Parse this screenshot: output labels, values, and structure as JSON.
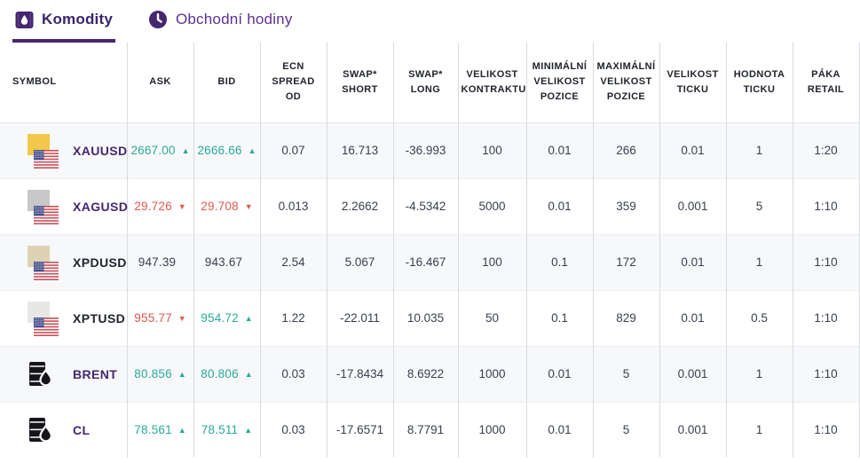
{
  "tabs": [
    {
      "label": "Komodity",
      "icon": "oil-barrel-tab-icon",
      "active": true
    },
    {
      "label": "Obchodní hodiny",
      "icon": "clock-icon",
      "active": false
    }
  ],
  "table": {
    "columns": [
      {
        "key": "symbol",
        "label": "SYMBOL"
      },
      {
        "key": "ask",
        "label": "ASK"
      },
      {
        "key": "bid",
        "label": "BID"
      },
      {
        "key": "ecn_spread_od",
        "label": "ECN SPREAD OD"
      },
      {
        "key": "swap_short",
        "label": "SWAP* SHORT"
      },
      {
        "key": "swap_long",
        "label": "SWAP* LONG"
      },
      {
        "key": "velikost_kontraktu",
        "label": "VELIKOST KONTRAKTU"
      },
      {
        "key": "min_velikost_pozice",
        "label": "MINIMÁLNÍ VELIKOST POZICE"
      },
      {
        "key": "max_velikost_pozice",
        "label": "MAXIMÁLNÍ VELIKOST POZICE"
      },
      {
        "key": "velikost_ticku",
        "label": "VELIKOST TICKU"
      },
      {
        "key": "hodnota_ticku",
        "label": "HODNOTA TICKU"
      },
      {
        "key": "paka_retail",
        "label": "PÁKA RETAIL"
      }
    ],
    "rows": [
      {
        "symbol": "XAUUSD",
        "icon": "gold-us-flag-icon",
        "symbol_color": "#44276f",
        "ask": "2667.00",
        "ask_dir": "up",
        "bid": "2666.66",
        "bid_dir": "up",
        "ecn_spread_od": "0.07",
        "swap_short": "16.713",
        "swap_long": "-36.993",
        "velikost_kontraktu": "100",
        "min_velikost_pozice": "0.01",
        "max_velikost_pozice": "266",
        "velikost_ticku": "0.01",
        "hodnota_ticku": "1",
        "paka_retail": "1:20"
      },
      {
        "symbol": "XAGUSD",
        "icon": "silver-us-flag-icon",
        "symbol_color": "#44276f",
        "ask": "29.726",
        "ask_dir": "down",
        "bid": "29.708",
        "bid_dir": "down",
        "ecn_spread_od": "0.013",
        "swap_short": "2.2662",
        "swap_long": "-4.5342",
        "velikost_kontraktu": "5000",
        "min_velikost_pozice": "0.01",
        "max_velikost_pozice": "359",
        "velikost_ticku": "0.001",
        "hodnota_ticku": "5",
        "paka_retail": "1:10"
      },
      {
        "symbol": "XPDUSD",
        "icon": "palladium-us-flag-icon",
        "symbol_color": "#20242e",
        "ask": "947.39",
        "ask_dir": "flat",
        "bid": "943.67",
        "bid_dir": "flat",
        "ecn_spread_od": "2.54",
        "swap_short": "5.067",
        "swap_long": "-16.467",
        "velikost_kontraktu": "100",
        "min_velikost_pozice": "0.1",
        "max_velikost_pozice": "172",
        "velikost_ticku": "0.01",
        "hodnota_ticku": "1",
        "paka_retail": "1:10"
      },
      {
        "symbol": "XPTUSD",
        "icon": "platinum-us-flag-icon",
        "symbol_color": "#20242e",
        "ask": "955.77",
        "ask_dir": "down",
        "bid": "954.72",
        "bid_dir": "up",
        "ecn_spread_od": "1.22",
        "swap_short": "-22.011",
        "swap_long": "10.035",
        "velikost_kontraktu": "50",
        "min_velikost_pozice": "0.1",
        "max_velikost_pozice": "829",
        "velikost_ticku": "0.01",
        "hodnota_ticku": "0.5",
        "paka_retail": "1:10"
      },
      {
        "symbol": "BRENT",
        "icon": "oil-barrel-icon",
        "symbol_color": "#44276f",
        "ask": "80.856",
        "ask_dir": "up",
        "bid": "80.806",
        "bid_dir": "up",
        "ecn_spread_od": "0.03",
        "swap_short": "-17.8434",
        "swap_long": "8.6922",
        "velikost_kontraktu": "1000",
        "min_velikost_pozice": "0.01",
        "max_velikost_pozice": "5",
        "velikost_ticku": "0.001",
        "hodnota_ticku": "1",
        "paka_retail": "1:10"
      },
      {
        "symbol": "CL",
        "icon": "oil-barrel-icon",
        "symbol_color": "#44276f",
        "ask": "78.561",
        "ask_dir": "up",
        "bid": "78.511",
        "bid_dir": "up",
        "ecn_spread_od": "0.03",
        "swap_short": "-17.6571",
        "swap_long": "8.7791",
        "velikost_kontraktu": "1000",
        "min_velikost_pozice": "0.01",
        "max_velikost_pozice": "5",
        "velikost_ticku": "0.001",
        "hodnota_ticku": "1",
        "paka_retail": "1:10"
      }
    ]
  },
  "icons": {
    "up_arrow": "▲",
    "down_arrow": "▼"
  },
  "colors": {
    "accent_purple": "#44276f",
    "tab_inactive_purple": "#5e3192",
    "up_teal": "#2aa99a",
    "down_red": "#e2574c",
    "gold": "#f2c84b",
    "silver": "#c8c8c8",
    "palladium": "#ddd2b4",
    "platinum": "#e7e7e5",
    "flag_red": "#c8505a",
    "flag_navy": "#46508c"
  }
}
